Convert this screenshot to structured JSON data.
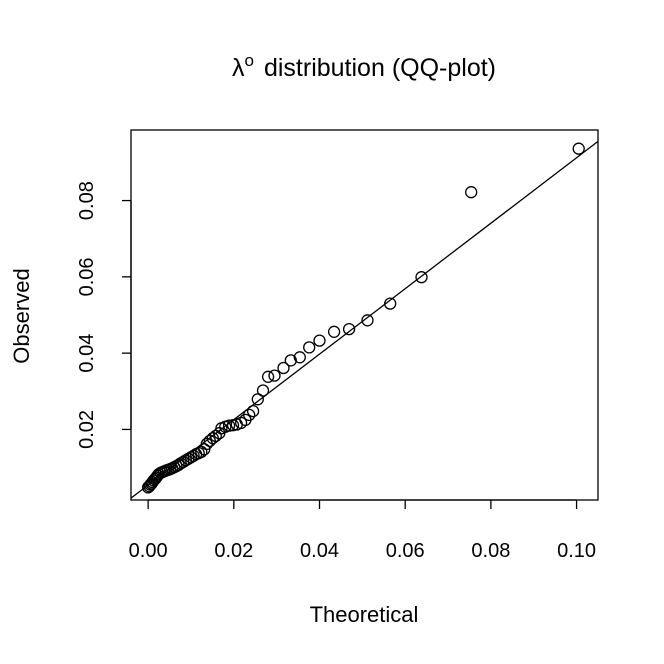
{
  "chart_data": {
    "type": "scatter",
    "title": {
      "symbol": "λ",
      "superscript": "o",
      "text": "distribution (QQ-plot)"
    },
    "xlabel": "Theoretical",
    "ylabel": "Observed",
    "xlim": [
      -0.004,
      0.105
    ],
    "ylim": [
      0.0015,
      0.0985
    ],
    "x_ticks": [
      0.0,
      0.02,
      0.04,
      0.06,
      0.08,
      0.1
    ],
    "x_tick_labels": [
      "0.00",
      "0.02",
      "0.04",
      "0.06",
      "0.08",
      "0.10"
    ],
    "y_ticks": [
      0.02,
      0.04,
      0.06,
      0.08
    ],
    "y_tick_labels": [
      "0.02",
      "0.04",
      "0.06",
      "0.08"
    ],
    "reference_line": {
      "from": [
        -0.004,
        0.002
      ],
      "to": [
        0.105,
        0.0955
      ]
    },
    "grid": false,
    "points": [
      [
        0.0,
        0.0048
      ],
      [
        0.0003,
        0.0051
      ],
      [
        0.0005,
        0.0055
      ],
      [
        0.0008,
        0.0058
      ],
      [
        0.001,
        0.0062
      ],
      [
        0.0013,
        0.0066
      ],
      [
        0.0016,
        0.007
      ],
      [
        0.0019,
        0.0074
      ],
      [
        0.0022,
        0.0079
      ],
      [
        0.0025,
        0.0083
      ],
      [
        0.0029,
        0.0086
      ],
      [
        0.0033,
        0.0088
      ],
      [
        0.0037,
        0.009
      ],
      [
        0.0041,
        0.0092
      ],
      [
        0.0046,
        0.0094
      ],
      [
        0.0051,
        0.0096
      ],
      [
        0.0056,
        0.0098
      ],
      [
        0.0061,
        0.0101
      ],
      [
        0.0066,
        0.0104
      ],
      [
        0.0071,
        0.0107
      ],
      [
        0.0076,
        0.0111
      ],
      [
        0.0082,
        0.0115
      ],
      [
        0.0088,
        0.0119
      ],
      [
        0.0094,
        0.0123
      ],
      [
        0.01,
        0.0127
      ],
      [
        0.0106,
        0.0131
      ],
      [
        0.0112,
        0.0135
      ],
      [
        0.0118,
        0.0138
      ],
      [
        0.0124,
        0.0141
      ],
      [
        0.0131,
        0.0148
      ],
      [
        0.0137,
        0.0162
      ],
      [
        0.0144,
        0.017
      ],
      [
        0.0151,
        0.0177
      ],
      [
        0.0158,
        0.0183
      ],
      [
        0.0166,
        0.019
      ],
      [
        0.0171,
        0.0203
      ],
      [
        0.018,
        0.0207
      ],
      [
        0.0189,
        0.021
      ],
      [
        0.0198,
        0.0211
      ],
      [
        0.0207,
        0.0213
      ],
      [
        0.0217,
        0.0217
      ],
      [
        0.0227,
        0.0225
      ],
      [
        0.0236,
        0.0238
      ],
      [
        0.0245,
        0.0248
      ],
      [
        0.0256,
        0.0279
      ],
      [
        0.0268,
        0.0302
      ],
      [
        0.028,
        0.0338
      ],
      [
        0.0295,
        0.0341
      ],
      [
        0.0316,
        0.0361
      ],
      [
        0.0333,
        0.0381
      ],
      [
        0.0354,
        0.0389
      ],
      [
        0.0376,
        0.0415
      ],
      [
        0.04,
        0.0433
      ],
      [
        0.0434,
        0.0456
      ],
      [
        0.0469,
        0.0463
      ],
      [
        0.0512,
        0.0486
      ],
      [
        0.0565,
        0.053
      ],
      [
        0.0638,
        0.0599
      ],
      [
        0.0754,
        0.0822
      ],
      [
        0.1005,
        0.0936
      ]
    ]
  }
}
